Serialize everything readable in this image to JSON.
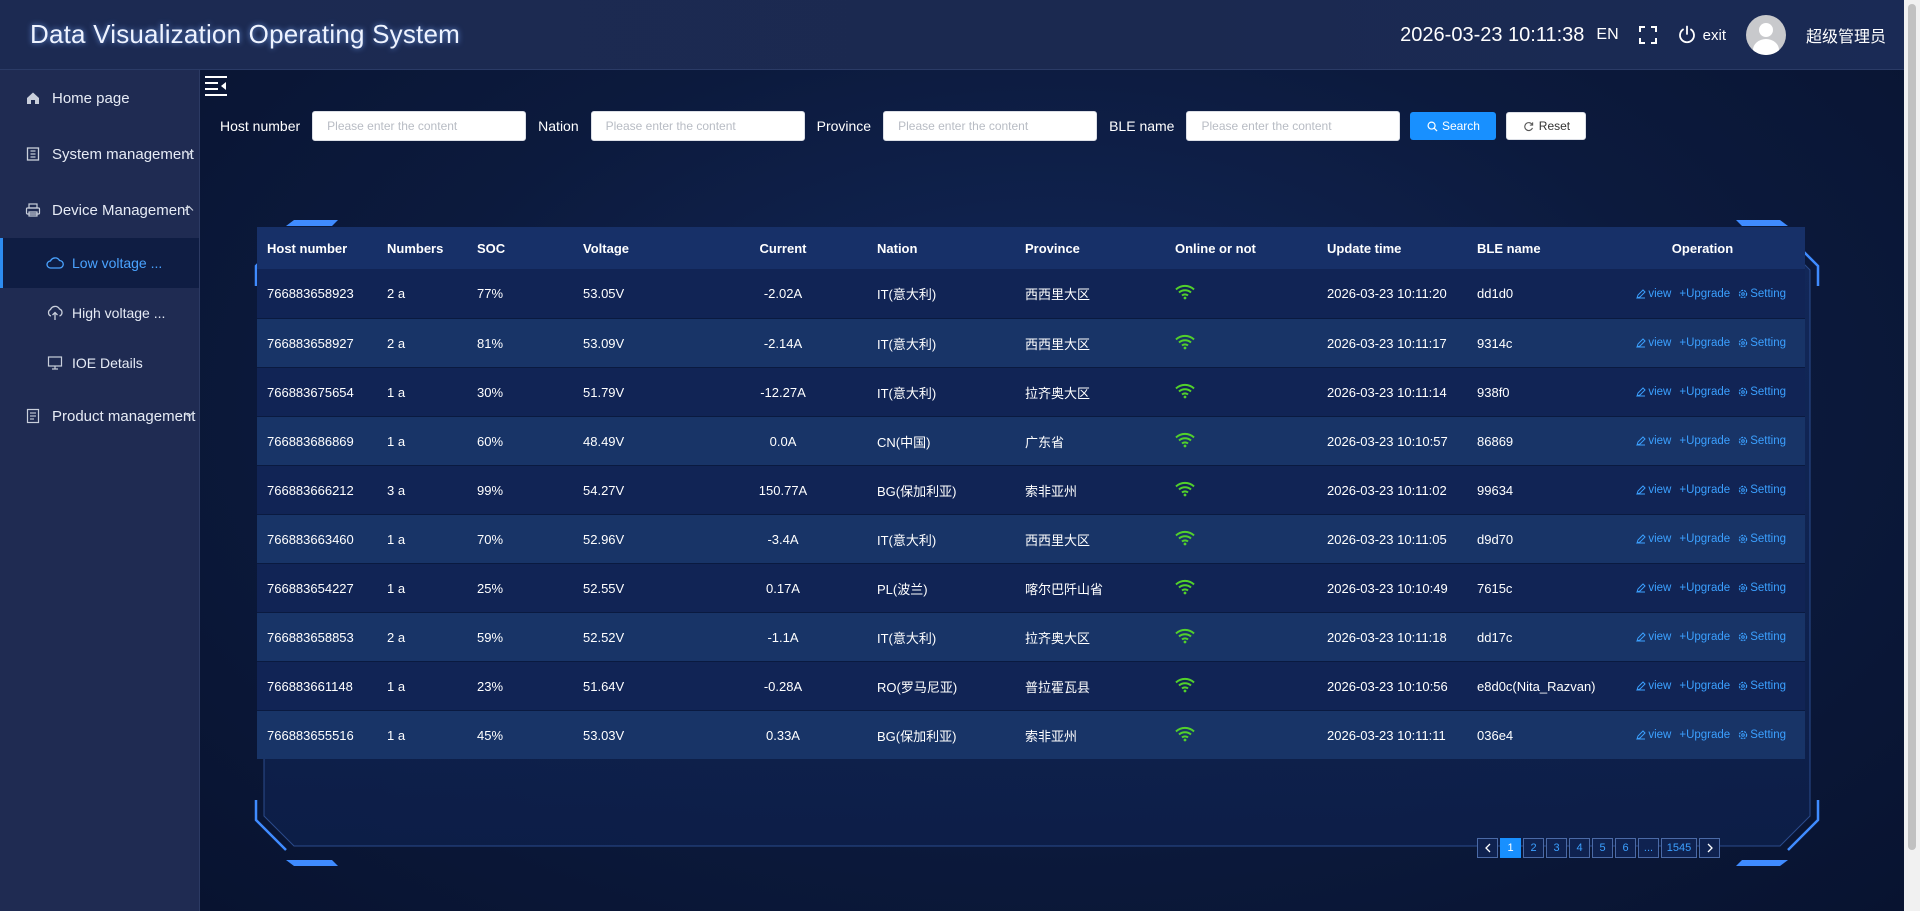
{
  "header": {
    "title": "Data Visualization Operating System",
    "clock": "2026-03-23 10:11:38",
    "language": "EN",
    "exit_label": "exit",
    "user_name": "超级管理员"
  },
  "sidebar": {
    "items": [
      {
        "label": "Home page",
        "icon": "home-icon"
      },
      {
        "label": "System management",
        "icon": "building-icon"
      },
      {
        "label": "Device Management",
        "icon": "printer-icon"
      },
      {
        "label": "Product management",
        "icon": "document-icon"
      }
    ],
    "device_sub": [
      {
        "label": "Low voltage ...",
        "icon": "cloud-icon",
        "active": true
      },
      {
        "label": "High voltage ...",
        "icon": "cloud-upload-icon",
        "active": false
      },
      {
        "label": "IOE Details",
        "icon": "monitor-icon",
        "active": false
      }
    ]
  },
  "search": {
    "host_label": "Host number",
    "nation_label": "Nation",
    "province_label": "Province",
    "ble_label": "BLE name",
    "placeholder": "Please enter the content",
    "search_button": "Search",
    "reset_button": "Reset"
  },
  "table": {
    "columns": [
      "Host number",
      "Numbers",
      "SOC",
      "Voltage",
      "Current",
      "Nation",
      "Province",
      "Online or not",
      "Update time",
      "BLE name",
      "Operation"
    ],
    "rows": [
      {
        "host": "766883658923",
        "numbers": "2 a",
        "soc": "77%",
        "voltage": "53.05V",
        "current": "-2.02A",
        "nation": "IT(意大利)",
        "province": "西西里大区",
        "time": "2026-03-23 10:11:20",
        "ble": "dd1d0"
      },
      {
        "host": "766883658927",
        "numbers": "2 a",
        "soc": "81%",
        "voltage": "53.09V",
        "current": "-2.14A",
        "nation": "IT(意大利)",
        "province": "西西里大区",
        "time": "2026-03-23 10:11:17",
        "ble": "9314c"
      },
      {
        "host": "766883675654",
        "numbers": "1 a",
        "soc": "30%",
        "voltage": "51.79V",
        "current": "-12.27A",
        "nation": "IT(意大利)",
        "province": "拉齐奥大区",
        "time": "2026-03-23 10:11:14",
        "ble": "938f0"
      },
      {
        "host": "766883686869",
        "numbers": "1 a",
        "soc": "60%",
        "voltage": "48.49V",
        "current": "0.0A",
        "nation": "CN(中国)",
        "province": "广东省",
        "time": "2026-03-23 10:10:57",
        "ble": "86869"
      },
      {
        "host": "766883666212",
        "numbers": "3 a",
        "soc": "99%",
        "voltage": "54.27V",
        "current": "150.77A",
        "nation": "BG(保加利亚)",
        "province": "索非亚州",
        "time": "2026-03-23 10:11:02",
        "ble": "99634"
      },
      {
        "host": "766883663460",
        "numbers": "1 a",
        "soc": "70%",
        "voltage": "52.96V",
        "current": "-3.4A",
        "nation": "IT(意大利)",
        "province": "西西里大区",
        "time": "2026-03-23 10:11:05",
        "ble": "d9d70"
      },
      {
        "host": "766883654227",
        "numbers": "1 a",
        "soc": "25%",
        "voltage": "52.55V",
        "current": "0.17A",
        "nation": "PL(波兰)",
        "province": "喀尔巴阡山省",
        "time": "2026-03-23 10:10:49",
        "ble": "7615c"
      },
      {
        "host": "766883658853",
        "numbers": "2 a",
        "soc": "59%",
        "voltage": "52.52V",
        "current": "-1.1A",
        "nation": "IT(意大利)",
        "province": "拉齐奥大区",
        "time": "2026-03-23 10:11:18",
        "ble": "dd17c"
      },
      {
        "host": "766883661148",
        "numbers": "1 a",
        "soc": "23%",
        "voltage": "51.64V",
        "current": "-0.28A",
        "nation": "RO(罗马尼亚)",
        "province": "普拉霍瓦县",
        "time": "2026-03-23 10:10:56",
        "ble": "e8d0c(Nita_Razvan)"
      },
      {
        "host": "766883655516",
        "numbers": "1 a",
        "soc": "45%",
        "voltage": "53.03V",
        "current": "0.33A",
        "nation": "BG(保加利亚)",
        "province": "索非亚州",
        "time": "2026-03-23 10:11:11",
        "ble": "036e4"
      }
    ],
    "op_view": "view",
    "op_upgrade": "Upgrade",
    "op_setting": "Setting"
  },
  "pagination": {
    "pages": [
      "1",
      "2",
      "3",
      "4",
      "5",
      "6",
      "...",
      "1545"
    ],
    "active": "1"
  },
  "colors": {
    "accent": "#1890ff",
    "link": "#3ba0ff",
    "online": "#52d12b",
    "sidebar_bg": "#1f2b52",
    "header_bg": "#1c2a52"
  }
}
